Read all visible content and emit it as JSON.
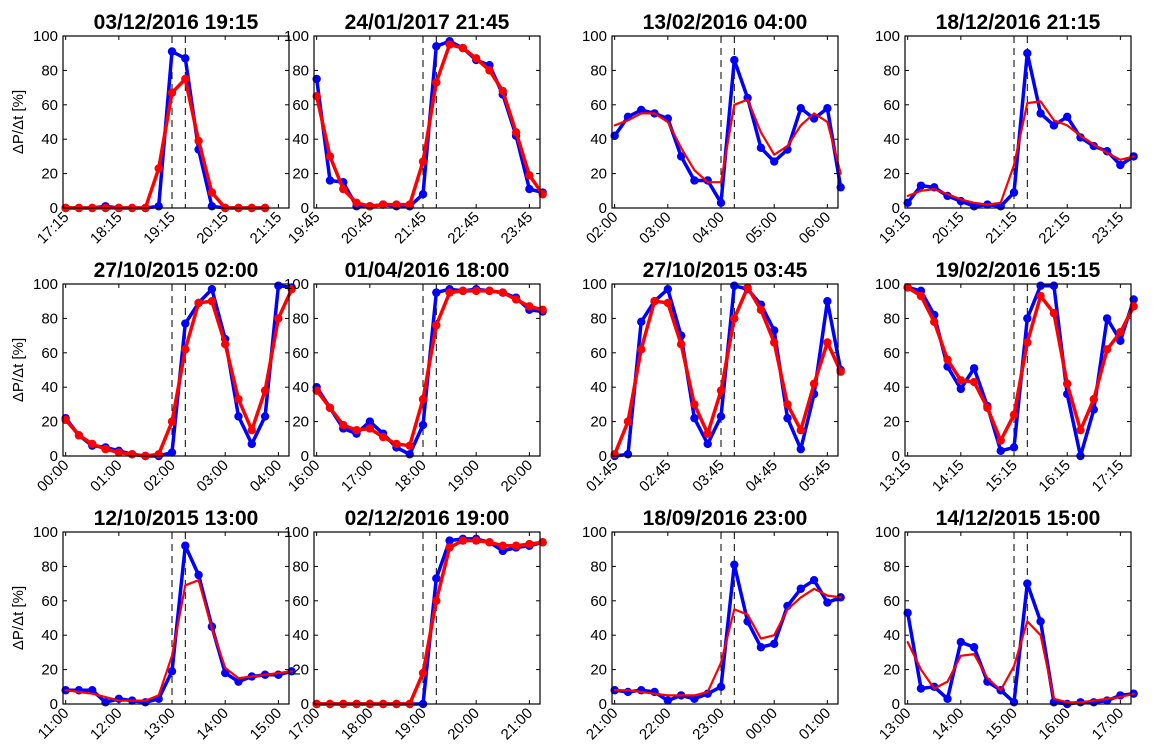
{
  "chart_data": [
    {
      "type": "line",
      "title": "03/12/2016 19:15",
      "ylabel": "ΔP/Δt [%]",
      "ylim": [
        0,
        100
      ],
      "yticks": [
        0,
        20,
        40,
        60,
        80,
        100
      ],
      "xticks": [
        "17:15",
        "18:15",
        "19:15",
        "20:15",
        "21:15"
      ],
      "xrange": [
        -0.2,
        16.8
      ],
      "event_markers": [
        8,
        9
      ],
      "red_markers": true,
      "series": [
        {
          "color": "#0000ff",
          "values": [
            0,
            0,
            0,
            1,
            0,
            0,
            0,
            1,
            91,
            87,
            34,
            1,
            0,
            0,
            0,
            0
          ]
        },
        {
          "color": "#ff0000",
          "values": [
            0,
            0,
            0,
            0,
            0,
            0,
            0,
            23,
            67,
            75,
            39,
            9,
            0,
            0,
            0,
            0
          ]
        }
      ]
    },
    {
      "type": "line",
      "title": "24/01/2017 21:45",
      "ylabel": "",
      "ylim": [
        0,
        100
      ],
      "yticks": [
        0,
        20,
        40,
        60,
        80,
        100
      ],
      "xticks": [
        "19:45",
        "20:45",
        "21:45",
        "22:45",
        "23:45"
      ],
      "xrange": [
        -0.2,
        16.8
      ],
      "event_markers": [
        8,
        9
      ],
      "red_markers": true,
      "series": [
        {
          "color": "#0000ff",
          "values": [
            75,
            16,
            15,
            1,
            1,
            2,
            1,
            1,
            8,
            94,
            97,
            93,
            86,
            83,
            66,
            42,
            11,
            9
          ]
        },
        {
          "color": "#ff0000",
          "values": [
            65,
            30,
            11,
            3,
            1,
            2,
            2,
            2,
            27,
            73,
            95,
            93,
            87,
            80,
            68,
            44,
            19,
            8
          ]
        }
      ]
    },
    {
      "type": "line",
      "title": "13/02/2016 04:00",
      "ylabel": "",
      "ylim": [
        0,
        100
      ],
      "yticks": [
        0,
        20,
        40,
        60,
        80,
        100
      ],
      "xticks": [
        "02:00",
        "03:00",
        "04:00",
        "05:00",
        "06:00"
      ],
      "xrange": [
        -0.2,
        16.8
      ],
      "event_markers": [
        8,
        9
      ],
      "red_markers": false,
      "series": [
        {
          "color": "#0000ff",
          "values": [
            42,
            53,
            57,
            55,
            52,
            30,
            16,
            16,
            3,
            86,
            64,
            35,
            27,
            34,
            58,
            52,
            58,
            12
          ]
        },
        {
          "color": "#ff0000",
          "values": [
            48,
            51,
            55,
            55,
            50,
            35,
            22,
            15,
            15,
            60,
            63,
            44,
            31,
            36,
            48,
            55,
            50,
            20
          ]
        }
      ]
    },
    {
      "type": "line",
      "title": "18/12/2016 21:15",
      "ylabel": "",
      "ylim": [
        0,
        100
      ],
      "yticks": [
        0,
        20,
        40,
        60,
        80,
        100
      ],
      "xticks": [
        "19:15",
        "20:15",
        "21:15",
        "22:15",
        "23:15"
      ],
      "xrange": [
        -0.2,
        16.8
      ],
      "event_markers": [
        8,
        9
      ],
      "red_markers": false,
      "series": [
        {
          "color": "#0000ff",
          "values": [
            3,
            13,
            12,
            7,
            4,
            1,
            2,
            1,
            9,
            90,
            55,
            48,
            53,
            41,
            36,
            33,
            25,
            30
          ]
        },
        {
          "color": "#ff0000",
          "values": [
            7,
            10,
            11,
            8,
            5,
            3,
            2,
            3,
            25,
            61,
            62,
            51,
            48,
            42,
            37,
            32,
            28,
            30
          ]
        }
      ]
    },
    {
      "type": "line",
      "title": "27/10/2015 02:00",
      "ylabel": "ΔP/Δt [%]",
      "ylim": [
        0,
        100
      ],
      "yticks": [
        0,
        20,
        40,
        60,
        80,
        100
      ],
      "xticks": [
        "00:00",
        "01:00",
        "02:00",
        "03:00",
        "04:00"
      ],
      "xrange": [
        -0.2,
        16.8
      ],
      "event_markers": [
        8,
        9
      ],
      "red_markers": true,
      "series": [
        {
          "color": "#0000ff",
          "values": [
            22,
            12,
            6,
            5,
            3,
            1,
            0,
            0,
            2,
            77,
            89,
            97,
            68,
            23,
            7,
            23,
            99,
            98
          ]
        },
        {
          "color": "#ff0000",
          "values": [
            21,
            12,
            7,
            4,
            2,
            1,
            0,
            1,
            20,
            62,
            89,
            90,
            65,
            33,
            15,
            38,
            80,
            97
          ]
        }
      ]
    },
    {
      "type": "line",
      "title": "01/04/2016 18:00",
      "ylabel": "",
      "ylim": [
        0,
        100
      ],
      "yticks": [
        0,
        20,
        40,
        60,
        80,
        100
      ],
      "xticks": [
        "16:00",
        "17:00",
        "18:00",
        "19:00",
        "20:00"
      ],
      "xrange": [
        -0.2,
        16.8
      ],
      "event_markers": [
        8,
        9
      ],
      "red_markers": true,
      "series": [
        {
          "color": "#0000ff",
          "values": [
            40,
            28,
            16,
            13,
            20,
            13,
            5,
            1,
            18,
            95,
            97,
            96,
            97,
            96,
            95,
            92,
            85,
            84
          ]
        },
        {
          "color": "#ff0000",
          "values": [
            38,
            28,
            18,
            15,
            16,
            11,
            7,
            6,
            33,
            76,
            95,
            96,
            96,
            96,
            95,
            91,
            87,
            85
          ]
        }
      ]
    },
    {
      "type": "line",
      "title": "27/10/2015 03:45",
      "ylabel": "",
      "ylim": [
        0,
        100
      ],
      "yticks": [
        0,
        20,
        40,
        60,
        80,
        100
      ],
      "xticks": [
        "01:45",
        "02:45",
        "03:45",
        "04:45",
        "05:45"
      ],
      "xrange": [
        -0.2,
        16.8
      ],
      "event_markers": [
        8,
        9
      ],
      "red_markers": true,
      "series": [
        {
          "color": "#0000ff",
          "values": [
            0,
            1,
            78,
            90,
            97,
            70,
            22,
            7,
            23,
            99,
            97,
            88,
            73,
            22,
            4,
            36,
            90,
            50
          ]
        },
        {
          "color": "#ff0000",
          "values": [
            1,
            20,
            62,
            90,
            89,
            65,
            30,
            13,
            38,
            80,
            98,
            85,
            66,
            30,
            15,
            42,
            66,
            49
          ]
        }
      ]
    },
    {
      "type": "line",
      "title": "19/02/2016 15:15",
      "ylabel": "",
      "ylim": [
        0,
        100
      ],
      "yticks": [
        0,
        20,
        40,
        60,
        80,
        100
      ],
      "xticks": [
        "13:15",
        "14:15",
        "15:15",
        "16:15",
        "17:15"
      ],
      "xrange": [
        -0.2,
        16.8
      ],
      "event_markers": [
        8,
        9
      ],
      "red_markers": true,
      "series": [
        {
          "color": "#0000ff",
          "values": [
            98,
            96,
            82,
            52,
            39,
            51,
            29,
            3,
            5,
            80,
            99,
            99,
            36,
            0,
            27,
            80,
            67,
            91
          ]
        },
        {
          "color": "#ff0000",
          "values": [
            98,
            93,
            78,
            56,
            44,
            43,
            28,
            9,
            24,
            66,
            93,
            83,
            42,
            15,
            33,
            62,
            72,
            87
          ]
        }
      ]
    },
    {
      "type": "line",
      "title": "12/10/2015 13:00",
      "ylabel": "ΔP/Δt [%]",
      "ylim": [
        0,
        100
      ],
      "yticks": [
        0,
        20,
        40,
        60,
        80,
        100
      ],
      "xticks": [
        "11:00",
        "12:00",
        "13:00",
        "14:00",
        "15:00"
      ],
      "xrange": [
        -0.2,
        16.8
      ],
      "event_markers": [
        8,
        9
      ],
      "red_markers": false,
      "series": [
        {
          "color": "#0000ff",
          "values": [
            8,
            8,
            8,
            1,
            3,
            2,
            1,
            3,
            19,
            92,
            75,
            45,
            18,
            13,
            16,
            17,
            17,
            19
          ]
        },
        {
          "color": "#ff0000",
          "values": [
            8,
            7,
            6,
            4,
            2,
            2,
            2,
            5,
            28,
            69,
            72,
            44,
            21,
            15,
            16,
            17,
            18,
            19
          ]
        }
      ]
    },
    {
      "type": "line",
      "title": "02/12/2016 19:00",
      "ylabel": "",
      "ylim": [
        0,
        100
      ],
      "yticks": [
        0,
        20,
        40,
        60,
        80,
        100
      ],
      "xticks": [
        "17:00",
        "18:00",
        "19:00",
        "20:00",
        "21:00"
      ],
      "xrange": [
        -0.2,
        16.8
      ],
      "event_markers": [
        8,
        9
      ],
      "red_markers": true,
      "series": [
        {
          "color": "#0000ff",
          "values": [
            0,
            0,
            0,
            0,
            0,
            0,
            0,
            0,
            0,
            73,
            95,
            96,
            96,
            94,
            89,
            91,
            92,
            94
          ]
        },
        {
          "color": "#ff0000",
          "values": [
            0,
            0,
            0,
            0,
            0,
            0,
            0,
            0,
            18,
            60,
            91,
            95,
            95,
            94,
            92,
            92,
            93,
            94
          ]
        }
      ]
    },
    {
      "type": "line",
      "title": "18/09/2016 23:00",
      "ylabel": "",
      "ylim": [
        0,
        100
      ],
      "yticks": [
        0,
        20,
        40,
        60,
        80,
        100
      ],
      "xticks": [
        "21:00",
        "22:00",
        "23:00",
        "00:00",
        "01:00"
      ],
      "xrange": [
        -0.2,
        16.8
      ],
      "event_markers": [
        8,
        9
      ],
      "red_markers": false,
      "series": [
        {
          "color": "#0000ff",
          "values": [
            8,
            7,
            8,
            7,
            2,
            5,
            3,
            6,
            10,
            81,
            48,
            33,
            35,
            57,
            67,
            72,
            59,
            62
          ]
        },
        {
          "color": "#ff0000",
          "values": [
            8,
            8,
            7,
            6,
            5,
            5,
            5,
            7,
            24,
            55,
            52,
            38,
            40,
            55,
            62,
            67,
            63,
            62
          ]
        }
      ]
    },
    {
      "type": "line",
      "title": "14/12/2015 15:00",
      "ylabel": "",
      "ylim": [
        0,
        100
      ],
      "yticks": [
        0,
        20,
        40,
        60,
        80,
        100
      ],
      "xticks": [
        "13:00",
        "14:00",
        "15:00",
        "16:00",
        "17:00"
      ],
      "xrange": [
        -0.2,
        16.8
      ],
      "event_markers": [
        8,
        9
      ],
      "red_markers": false,
      "series": [
        {
          "color": "#0000ff",
          "values": [
            53,
            9,
            10,
            3,
            36,
            33,
            13,
            8,
            1,
            70,
            48,
            1,
            0,
            1,
            1,
            2,
            5,
            6
          ]
        },
        {
          "color": "#ff0000",
          "values": [
            36,
            20,
            9,
            13,
            28,
            29,
            15,
            8,
            22,
            48,
            40,
            3,
            1,
            1,
            2,
            3,
            4,
            6
          ]
        }
      ]
    }
  ]
}
